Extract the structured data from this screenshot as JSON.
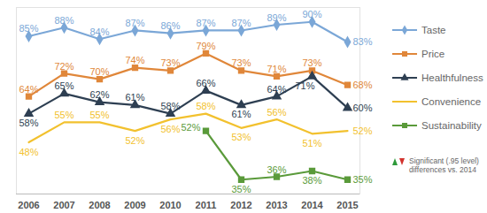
{
  "chart_data": {
    "type": "line",
    "categories": [
      "2006",
      "2007",
      "2008",
      "2009",
      "2010",
      "2011",
      "2012",
      "2013",
      "2014",
      "2015"
    ],
    "ylim": [
      30,
      95
    ],
    "yticks": [],
    "tick_labels": "x",
    "data_labels": true,
    "legend": "right",
    "annotations": [
      "Significant (.95 level) differences vs. 2014"
    ],
    "series": [
      {
        "name": "Taste",
        "color": "#7ba7d7",
        "marker": "diamond",
        "values": [
          85,
          88,
          84,
          87,
          86,
          87,
          87,
          89,
          90,
          83
        ],
        "value_labels": [
          "85%",
          "88%",
          "84%",
          "87%",
          "86%",
          "87%",
          "87%",
          "89%",
          "90%",
          "83%"
        ]
      },
      {
        "name": "Price",
        "color": "#e0873a",
        "marker": "square",
        "values": [
          64,
          72,
          70,
          74,
          73,
          79,
          73,
          71,
          73,
          68
        ],
        "value_labels": [
          "64%",
          "72%",
          "70%",
          "74%",
          "73%",
          "79%",
          "73%",
          "71%",
          "73%",
          "68%"
        ]
      },
      {
        "name": "Healthfulness",
        "color": "#2e3f52",
        "marker": "triangle",
        "values": [
          58,
          65,
          62,
          61,
          58,
          66,
          61,
          64,
          71,
          60
        ],
        "value_labels": [
          "58%",
          "65%",
          "62%",
          "61%",
          "58%",
          "66%",
          "61%",
          "64%",
          "71%",
          "60%"
        ]
      },
      {
        "name": "Convenience",
        "color": "#f2c12e",
        "marker": "none",
        "values": [
          48,
          55,
          55,
          52,
          56,
          58,
          53,
          56,
          51,
          52
        ],
        "value_labels": [
          "48%",
          "55%",
          "55%",
          "52%",
          "56%",
          "58%",
          "53%",
          "56%",
          "51%",
          "52%"
        ]
      },
      {
        "name": "Sustainability",
        "color": "#5a9a3a",
        "marker": "square",
        "values": [
          null,
          null,
          null,
          null,
          null,
          52,
          35,
          36,
          38,
          35
        ],
        "value_labels": [
          null,
          null,
          null,
          null,
          null,
          "52%",
          "35%",
          "36%",
          "38%",
          "35%"
        ]
      }
    ]
  }
}
